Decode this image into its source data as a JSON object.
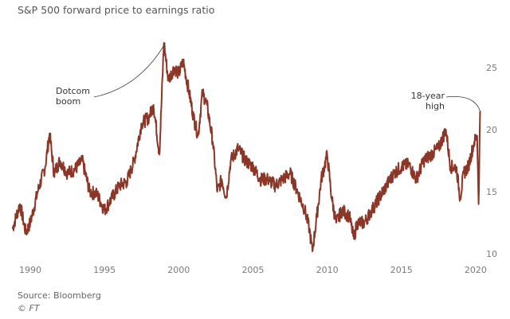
{
  "chart_data": {
    "type": "line",
    "title": "S&P 500 forward price to earnings ratio",
    "xlabel": "",
    "ylabel": "",
    "xlim": [
      1988.7,
      2020.5
    ],
    "ylim": [
      10,
      27
    ],
    "x_ticks": [
      1990,
      1995,
      2000,
      2005,
      2010,
      2015,
      2020
    ],
    "x_tick_labels": [
      "1990",
      "1995",
      "2000",
      "2005",
      "2010",
      "2015",
      "2020"
    ],
    "y_ticks": [
      25,
      20,
      15,
      10
    ],
    "y_tick_labels": [
      "25",
      "20",
      "15",
      "10"
    ],
    "y_axis_side": "right",
    "grid": false,
    "series": [
      {
        "name": "Forward P/E",
        "color": "#8b3626",
        "x": [
          1988.8,
          1989.3,
          1989.7,
          1990.0,
          1990.5,
          1991.0,
          1991.3,
          1991.6,
          1992.0,
          1992.5,
          1993.0,
          1993.5,
          1994.0,
          1994.5,
          1995.0,
          1995.5,
          1996.0,
          1996.5,
          1997.0,
          1997.5,
          1998.0,
          1998.3,
          1998.7,
          1999.0,
          1999.3,
          1999.7,
          2000.0,
          2000.3,
          2000.7,
          2001.0,
          2001.3,
          2001.6,
          2001.9,
          2002.3,
          2002.6,
          2002.9,
          2003.2,
          2003.5,
          2004.0,
          2004.5,
          2005.0,
          2005.5,
          2006.0,
          2006.5,
          2007.0,
          2007.5,
          2008.0,
          2008.5,
          2008.8,
          2009.0,
          2009.3,
          2009.6,
          2010.0,
          2010.3,
          2010.6,
          2011.0,
          2011.5,
          2011.8,
          2012.0,
          2012.5,
          2013.0,
          2013.5,
          2014.0,
          2014.5,
          2015.0,
          2015.5,
          2016.0,
          2016.5,
          2017.0,
          2017.5,
          2018.0,
          2018.3,
          2018.7,
          2018.95,
          2019.2,
          2019.5,
          2019.9,
          2020.1,
          2020.2,
          2020.3
        ],
        "y": [
          12,
          14,
          11.7,
          12.5,
          15,
          17,
          19.7,
          16.5,
          17.5,
          16.5,
          16.8,
          17.5,
          15,
          14.8,
          13.5,
          14.5,
          15.5,
          15.8,
          17.5,
          20.5,
          21,
          22,
          18,
          27,
          24,
          25,
          24.5,
          25.5,
          23,
          21,
          19.5,
          23,
          22,
          19,
          15,
          16,
          14.5,
          17.5,
          18.5,
          17.5,
          17,
          16,
          16,
          15.5,
          16,
          16.5,
          15,
          13.5,
          12,
          10.2,
          13,
          16,
          18,
          14.5,
          12.5,
          13.5,
          13,
          11.2,
          12.5,
          12.5,
          13.5,
          14.5,
          15.5,
          16.5,
          17,
          17.2,
          16,
          17.5,
          18,
          18.5,
          20,
          17,
          17,
          14.5,
          16.5,
          17,
          19,
          19.5,
          14,
          21.5
        ]
      }
    ],
    "annotations": [
      {
        "text": [
          "Dotcom",
          "boom"
        ],
        "x": 1999.0,
        "y": 27
      },
      {
        "text": [
          "18-year",
          "high"
        ],
        "x": 2020.3,
        "y": 21.5
      }
    ],
    "legend": "none"
  },
  "footer": {
    "source": "Source: Bloomberg",
    "credit": "© FT"
  }
}
